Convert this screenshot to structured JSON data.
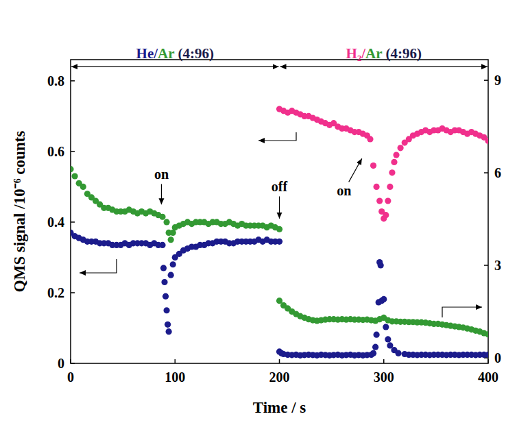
{
  "chart_data": {
    "type": "scatter",
    "x_label": "Time / s",
    "y_label": "QMS signal /10⁻⁶ counts",
    "xlim": [
      0,
      400
    ],
    "xticks": [
      0,
      100,
      200,
      300,
      400
    ],
    "ylim": [
      0,
      0.86
    ],
    "yticks": [
      0,
      0.2,
      0.4,
      0.6,
      0.8
    ],
    "y2lim": [
      -0.18,
      9.67
    ],
    "y2ticks": [
      0,
      3,
      6,
      9
    ],
    "grid": false,
    "series": [
      {
        "color": "#339933",
        "marker": "circle",
        "x": [
          0,
          4,
          8,
          12,
          16,
          20,
          24,
          28,
          32,
          36,
          40,
          44,
          48,
          52,
          56,
          60,
          64,
          68,
          72,
          76,
          80,
          84,
          88,
          92,
          94,
          96,
          98,
          100,
          104,
          108,
          112,
          116,
          120,
          124,
          128,
          132,
          136,
          140,
          144,
          148,
          152,
          156,
          160,
          164,
          168,
          172,
          176,
          180,
          184,
          188,
          192,
          196,
          200
        ],
        "values": [
          0.55,
          0.53,
          0.51,
          0.5,
          0.48,
          0.47,
          0.46,
          0.45,
          0.44,
          0.44,
          0.435,
          0.43,
          0.43,
          0.43,
          0.435,
          0.43,
          0.425,
          0.43,
          0.425,
          0.43,
          0.425,
          0.42,
          0.415,
          0.4,
          0.37,
          0.35,
          0.37,
          0.385,
          0.39,
          0.395,
          0.4,
          0.395,
          0.4,
          0.4,
          0.4,
          0.395,
          0.4,
          0.4,
          0.395,
          0.395,
          0.4,
          0.395,
          0.39,
          0.395,
          0.39,
          0.39,
          0.39,
          0.39,
          0.39,
          0.385,
          0.39,
          0.385,
          0.38
        ]
      },
      {
        "color": "#1c1c8c",
        "marker": "circle",
        "x": [
          0,
          4,
          8,
          12,
          16,
          20,
          24,
          28,
          32,
          36,
          40,
          44,
          48,
          52,
          56,
          60,
          64,
          68,
          72,
          76,
          80,
          84,
          88,
          89,
          90,
          91,
          92,
          93,
          94,
          96,
          98,
          100,
          104,
          108,
          112,
          116,
          120,
          124,
          128,
          132,
          136,
          140,
          144,
          148,
          152,
          156,
          160,
          164,
          168,
          172,
          176,
          180,
          184,
          188,
          192,
          196,
          200
        ],
        "values": [
          0.37,
          0.36,
          0.355,
          0.35,
          0.345,
          0.345,
          0.345,
          0.34,
          0.34,
          0.34,
          0.335,
          0.335,
          0.335,
          0.34,
          0.335,
          0.34,
          0.34,
          0.34,
          0.34,
          0.335,
          0.34,
          0.335,
          0.335,
          0.27,
          0.23,
          0.19,
          0.15,
          0.11,
          0.09,
          0.25,
          0.28,
          0.3,
          0.31,
          0.32,
          0.325,
          0.33,
          0.33,
          0.335,
          0.335,
          0.34,
          0.34,
          0.345,
          0.345,
          0.345,
          0.34,
          0.34,
          0.345,
          0.345,
          0.345,
          0.345,
          0.345,
          0.35,
          0.345,
          0.35,
          0.345,
          0.345,
          0.345
        ]
      },
      {
        "color": "#f0308c",
        "marker": "circle",
        "x": [
          200,
          204,
          208,
          212,
          216,
          220,
          224,
          228,
          232,
          236,
          240,
          244,
          248,
          252,
          256,
          260,
          264,
          268,
          272,
          276,
          280,
          284,
          287,
          290,
          293,
          296,
          298,
          300,
          302,
          304,
          306,
          308,
          310,
          312,
          316,
          320,
          324,
          328,
          332,
          336,
          340,
          344,
          348,
          352,
          356,
          360,
          364,
          368,
          372,
          376,
          380,
          384,
          388,
          392,
          396,
          400
        ],
        "values": [
          0.72,
          0.715,
          0.71,
          0.715,
          0.71,
          0.705,
          0.7,
          0.7,
          0.695,
          0.69,
          0.685,
          0.68,
          0.675,
          0.68,
          0.67,
          0.665,
          0.665,
          0.66,
          0.655,
          0.655,
          0.65,
          0.645,
          0.635,
          0.56,
          0.5,
          0.46,
          0.43,
          0.41,
          0.42,
          0.46,
          0.5,
          0.54,
          0.57,
          0.59,
          0.61,
          0.625,
          0.635,
          0.645,
          0.65,
          0.655,
          0.66,
          0.655,
          0.66,
          0.66,
          0.665,
          0.66,
          0.655,
          0.66,
          0.66,
          0.655,
          0.65,
          0.655,
          0.65,
          0.645,
          0.64,
          0.63
        ]
      },
      {
        "color": "#339933",
        "marker": "circle",
        "axis": "y2",
        "x": [
          200,
          204,
          208,
          212,
          216,
          220,
          224,
          228,
          232,
          236,
          240,
          244,
          248,
          252,
          256,
          260,
          264,
          268,
          272,
          276,
          280,
          284,
          288,
          292,
          296,
          300,
          304,
          308,
          312,
          316,
          320,
          324,
          328,
          332,
          336,
          340,
          344,
          348,
          352,
          356,
          360,
          364,
          368,
          372,
          376,
          380,
          384,
          388,
          392,
          396,
          400
        ],
        "values": [
          1.85,
          1.7,
          1.6,
          1.5,
          1.42,
          1.35,
          1.3,
          1.25,
          1.22,
          1.2,
          1.22,
          1.24,
          1.25,
          1.25,
          1.24,
          1.25,
          1.24,
          1.25,
          1.24,
          1.24,
          1.23,
          1.24,
          1.22,
          1.2,
          1.25,
          1.3,
          1.22,
          1.18,
          1.18,
          1.17,
          1.17,
          1.16,
          1.16,
          1.15,
          1.15,
          1.14,
          1.12,
          1.1,
          1.1,
          1.08,
          1.06,
          1.04,
          1.02,
          1.0,
          0.98,
          0.95,
          0.92,
          0.88,
          0.85,
          0.8,
          0.76
        ]
      },
      {
        "color": "#1c1c8c",
        "marker": "circle",
        "axis": "y2",
        "x": [
          200,
          202,
          204,
          208,
          212,
          216,
          220,
          224,
          228,
          232,
          236,
          240,
          244,
          248,
          252,
          256,
          260,
          264,
          268,
          272,
          276,
          280,
          284,
          288,
          290,
          292,
          293,
          295,
          296,
          297,
          298,
          300,
          302,
          304,
          306,
          310,
          314,
          320,
          324,
          328,
          332,
          336,
          340,
          344,
          348,
          352,
          356,
          360,
          364,
          368,
          372,
          376,
          380,
          384,
          388,
          392,
          396,
          400
        ],
        "values": [
          0.2,
          0.15,
          0.12,
          0.1,
          0.09,
          0.1,
          0.08,
          0.09,
          0.1,
          0.09,
          0.08,
          0.1,
          0.09,
          0.08,
          0.09,
          0.1,
          0.08,
          0.09,
          0.1,
          0.08,
          0.09,
          0.08,
          0.09,
          0.1,
          0.15,
          0.35,
          0.75,
          1.8,
          3.1,
          3.0,
          1.85,
          1.9,
          1.0,
          0.6,
          0.4,
          0.25,
          0.15,
          0.12,
          0.1,
          0.1,
          0.09,
          0.1,
          0.1,
          0.09,
          0.1,
          0.1,
          0.1,
          0.09,
          0.1,
          0.1,
          0.09,
          0.1,
          0.1,
          0.1,
          0.09,
          0.1,
          0.1,
          0.1
        ]
      }
    ],
    "spans": [
      {
        "x": [
          0,
          200
        ],
        "y": 0.84,
        "parts": [
          {
            "text": "He/",
            "color": "#1c1c8c"
          },
          {
            "text": "Ar",
            "color": "#339933"
          },
          {
            "text": " (4:96)",
            "color": "#1c1c4c"
          }
        ]
      },
      {
        "x": [
          200,
          400
        ],
        "y": 0.84,
        "parts": [
          {
            "text": "H₂/",
            "color": "#f0308c"
          },
          {
            "text": "Ar",
            "color": "#339933"
          },
          {
            "text": " (4:96)",
            "color": "#1c1c4c"
          }
        ]
      }
    ],
    "annotations": [
      {
        "text": "on",
        "x": 87,
        "y": 0.45,
        "text_x": 87,
        "text_y": 0.535
      },
      {
        "text": "off",
        "x": 200,
        "y": 0.41,
        "text_x": 200,
        "text_y": 0.5
      },
      {
        "text": "on",
        "x": 279,
        "y": 0.58,
        "text_x": 262,
        "text_y": 0.49
      }
    ]
  }
}
